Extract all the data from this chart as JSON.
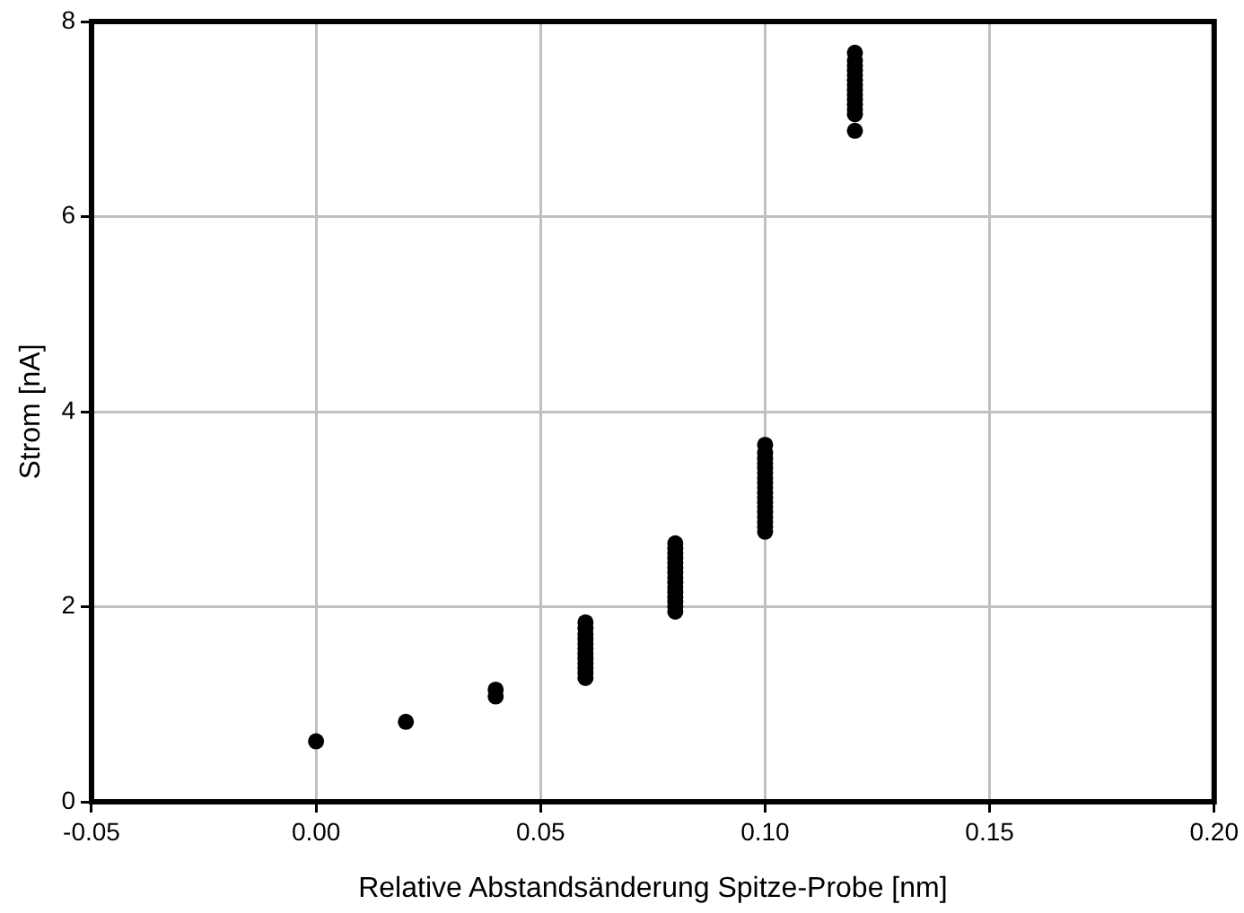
{
  "chart_data": {
    "type": "scatter",
    "xlabel": "Relative Abstandsänderung Spitze-Probe [nm]",
    "ylabel": "Strom [nA]",
    "x": [
      0,
      0.02,
      0.04,
      0.04,
      0.06,
      0.06,
      0.06,
      0.06,
      0.06,
      0.06,
      0.06,
      0.06,
      0.06,
      0.06,
      0.06,
      0.06,
      0.08,
      0.08,
      0.08,
      0.08,
      0.08,
      0.08,
      0.08,
      0.08,
      0.08,
      0.08,
      0.08,
      0.08,
      0.08,
      0.08,
      0.08,
      0.1,
      0.1,
      0.1,
      0.1,
      0.1,
      0.1,
      0.1,
      0.1,
      0.1,
      0.1,
      0.1,
      0.1,
      0.1,
      0.1,
      0.1,
      0.1,
      0.1,
      0.1,
      0.12,
      0.12,
      0.12,
      0.12,
      0.12,
      0.12,
      0.12,
      0.12,
      0.12,
      0.12,
      0.12,
      0.12,
      0.12,
      0.12
    ],
    "series": [
      {
        "color": "#000000",
        "values": [
          0.62,
          0.82,
          1.08,
          1.15,
          1.27,
          1.32,
          1.37,
          1.42,
          1.47,
          1.52,
          1.57,
          1.62,
          1.67,
          1.72,
          1.78,
          1.84,
          1.95,
          2.0,
          2.05,
          2.1,
          2.15,
          2.2,
          2.25,
          2.3,
          2.35,
          2.4,
          2.45,
          2.5,
          2.55,
          2.6,
          2.65,
          2.77,
          2.82,
          2.87,
          2.92,
          2.97,
          3.02,
          3.07,
          3.12,
          3.17,
          3.22,
          3.27,
          3.32,
          3.37,
          3.42,
          3.47,
          3.52,
          3.58,
          3.66,
          6.88,
          7.05,
          7.1,
          7.15,
          7.2,
          7.25,
          7.3,
          7.35,
          7.4,
          7.45,
          7.5,
          7.55,
          7.6,
          7.68
        ]
      }
    ],
    "xlim": [
      -0.05,
      0.2
    ],
    "xticks": [
      {
        "value": -0.05,
        "label": "-0.05"
      },
      {
        "value": 0,
        "label": "0.00"
      },
      {
        "value": 0.05,
        "label": "0.05"
      },
      {
        "value": 0.1,
        "label": "0.10"
      },
      {
        "value": 0.15,
        "label": "0.15"
      },
      {
        "value": 0.2,
        "label": "0.20"
      }
    ],
    "ylim": [
      0,
      8
    ],
    "yticks": [
      0,
      2,
      4,
      6,
      8
    ],
    "grid": true,
    "marker": "circle"
  }
}
